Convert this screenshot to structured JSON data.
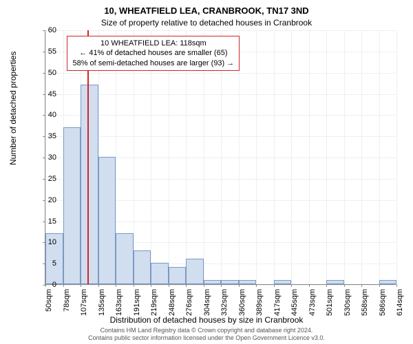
{
  "title_main": "10, WHEATFIELD LEA, CRANBROOK, TN17 3ND",
  "title_sub": "Size of property relative to detached houses in Cranbrook",
  "y_axis_label": "Number of detached properties",
  "x_axis_label": "Distribution of detached houses by size in Cranbrook",
  "footer_line1": "Contains HM Land Registry data © Crown copyright and database right 2024.",
  "footer_line2": "Contains public sector information licensed under the Open Government Licence v3.0.",
  "annotation_line1": "10 WHEATFIELD LEA: 118sqm",
  "annotation_line2": "← 41% of detached houses are smaller (65)",
  "annotation_line3": "58% of semi-detached houses are larger (93) →",
  "chart": {
    "type": "histogram",
    "ylim": [
      0,
      60
    ],
    "ytick_step": 5,
    "yticks": [
      0,
      5,
      10,
      15,
      20,
      25,
      30,
      35,
      40,
      45,
      50,
      55,
      60
    ],
    "xticks": [
      "50sqm",
      "78sqm",
      "107sqm",
      "135sqm",
      "163sqm",
      "191sqm",
      "219sqm",
      "248sqm",
      "276sqm",
      "304sqm",
      "332sqm",
      "360sqm",
      "389sqm",
      "417sqm",
      "445sqm",
      "473sqm",
      "501sqm",
      "530sqm",
      "558sqm",
      "586sqm",
      "614sqm"
    ],
    "bars": [
      12,
      37,
      47,
      30,
      12,
      8,
      5,
      4,
      6,
      1,
      1,
      1,
      0,
      1,
      0,
      0,
      1,
      0,
      0,
      1
    ],
    "bar_fill": "#d0def0",
    "bar_border": "#7a99c2",
    "grid_color": "#eceff4",
    "axis_color": "#888888",
    "ref_line_color": "#d22424",
    "ref_position_x": 118,
    "x_min": 50,
    "x_max": 614,
    "background_color": "#ffffff",
    "tick_fontsize": 11,
    "label_fontsize": 12,
    "title_fontsize": 13
  }
}
